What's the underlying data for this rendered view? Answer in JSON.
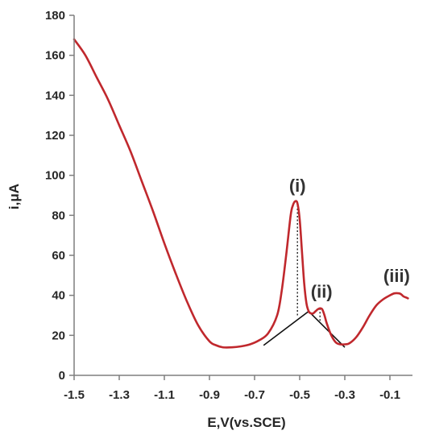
{
  "chart_data": {
    "type": "line",
    "xlabel": "E,V(vs.SCE)",
    "ylabel": "i,μA",
    "xlim": [
      -1.5,
      0.0
    ],
    "ylim": [
      0,
      180
    ],
    "x_ticks": [
      "-1.5",
      "-1.3",
      "-1.1",
      "-0.9",
      "-0.7",
      "-0.5",
      "-0.3",
      "-0.1"
    ],
    "y_ticks": [
      "0",
      "20",
      "40",
      "60",
      "80",
      "100",
      "120",
      "140",
      "160",
      "180"
    ],
    "grid": false,
    "colors": {
      "curve": "#c0282d",
      "baseline": "#111111",
      "axis": "#7f7f7f"
    },
    "series": [
      {
        "x": [
          -1.5,
          -1.45,
          -1.4,
          -1.35,
          -1.3,
          -1.25,
          -1.2,
          -1.15,
          -1.1,
          -1.05,
          -1.0,
          -0.95,
          -0.9,
          -0.87,
          -0.84,
          -0.8,
          -0.76,
          -0.72,
          -0.68,
          -0.64,
          -0.6,
          -0.58,
          -0.56,
          -0.54,
          -0.53,
          -0.52,
          -0.51,
          -0.5,
          -0.49,
          -0.48,
          -0.47,
          -0.46,
          -0.45,
          -0.44,
          -0.43,
          -0.42,
          -0.41,
          -0.4,
          -0.39,
          -0.38,
          -0.36,
          -0.34,
          -0.32,
          -0.3,
          -0.28,
          -0.25,
          -0.22,
          -0.19,
          -0.16,
          -0.13,
          -0.1,
          -0.08,
          -0.06,
          -0.05,
          -0.04,
          -0.03,
          -0.02
        ],
        "values": [
          168,
          160,
          149,
          138,
          125,
          112,
          97,
          82,
          66,
          51,
          37,
          25,
          17,
          15,
          14,
          14,
          14.5,
          15.5,
          17.5,
          21,
          30,
          42,
          60,
          80,
          85,
          87,
          86,
          78,
          62,
          46,
          36,
          32,
          31,
          31,
          32,
          33,
          33.5,
          33,
          30,
          26,
          20,
          16.5,
          15.5,
          15.5,
          16,
          19,
          24,
          30,
          35,
          38,
          40,
          41,
          41,
          40.5,
          39.5,
          39,
          38.5
        ]
      }
    ],
    "baseline_lines": [
      {
        "x": [
          -0.66,
          -0.46,
          -0.3
        ],
        "values": [
          15,
          32,
          14
        ]
      }
    ],
    "drop_lines": [
      {
        "x": -0.51,
        "values": [
          87,
          30
        ]
      },
      {
        "x": -0.41,
        "values": [
          33.5,
          27
        ]
      }
    ],
    "annotations": [
      {
        "text": "(i)",
        "x": -0.51,
        "y": 87
      },
      {
        "text": "(ii)",
        "x": -0.41,
        "y": 34
      },
      {
        "text": "(iii)",
        "x": -0.07,
        "y": 41
      }
    ]
  }
}
